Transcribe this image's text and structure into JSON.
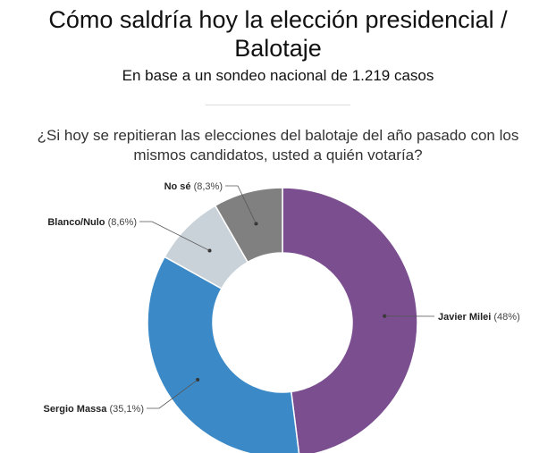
{
  "header": {
    "title_line1": "Cómo saldría hoy la elección presidencial /",
    "title_line2": "Balotaje",
    "subtitle": "En base a un sondeo nacional de 1.219 casos",
    "question": "¿Si hoy se repitieran las elecciones del balotaje del año pasado con los mismos candidatos, usted a quién votaría?"
  },
  "chart_data": {
    "type": "pie",
    "variant": "donut",
    "title": "Cómo saldría hoy la elección presidencial / Balotaje",
    "subtitle": "En base a un sondeo nacional de 1.219 casos",
    "slices": [
      {
        "name": "Javier Milei",
        "value": 48,
        "label": "(48%)",
        "color": "#7b4e8f"
      },
      {
        "name": "Sergio Massa",
        "value": 35.1,
        "label": "(35,1%)",
        "color": "#3b8ac7"
      },
      {
        "name": "Blanco/Nulo",
        "value": 8.6,
        "label": "(8,6%)",
        "color": "#c9d2d9"
      },
      {
        "name": "No sé",
        "value": 8.3,
        "label": "(8,3%)",
        "color": "#808080"
      }
    ]
  }
}
